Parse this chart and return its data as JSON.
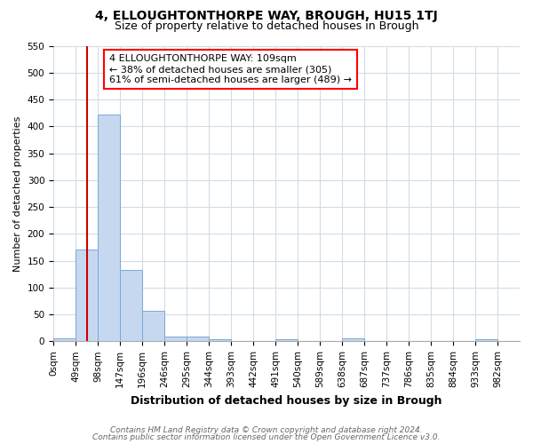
{
  "title": "4, ELLOUGHTONTHORPE WAY, BROUGH, HU15 1TJ",
  "subtitle": "Size of property relative to detached houses in Brough",
  "xlabel": "Distribution of detached houses by size in Brough",
  "ylabel": "Number of detached properties",
  "bin_labels": [
    "0sqm",
    "49sqm",
    "98sqm",
    "147sqm",
    "196sqm",
    "246sqm",
    "295sqm",
    "344sqm",
    "393sqm",
    "442sqm",
    "491sqm",
    "540sqm",
    "589sqm",
    "638sqm",
    "687sqm",
    "737sqm",
    "786sqm",
    "835sqm",
    "884sqm",
    "933sqm",
    "982sqm"
  ],
  "bar_values": [
    5,
    170,
    422,
    132,
    57,
    8,
    8,
    4,
    0,
    0,
    4,
    0,
    0,
    5,
    0,
    0,
    0,
    0,
    0,
    4,
    0
  ],
  "bar_color": "#c5d8f0",
  "bar_edge_color": "#7aa8d4",
  "red_line_x": 1.5,
  "annotation_text": "4 ELLOUGHTONTHORPE WAY: 109sqm\n← 38% of detached houses are smaller (305)\n61% of semi-detached houses are larger (489) →",
  "annotation_box_color": "white",
  "annotation_box_edge_color": "red",
  "red_line_color": "#cc0000",
  "ylim": [
    0,
    550
  ],
  "yticks": [
    0,
    50,
    100,
    150,
    200,
    250,
    300,
    350,
    400,
    450,
    500,
    550
  ],
  "footer_line1": "Contains HM Land Registry data © Crown copyright and database right 2024.",
  "footer_line2": "Contains public sector information licensed under the Open Government Licence v3.0.",
  "background_color": "#ffffff",
  "grid_color": "#d0dce8",
  "title_fontsize": 10,
  "subtitle_fontsize": 9,
  "xlabel_fontsize": 9,
  "ylabel_fontsize": 8,
  "tick_fontsize": 7.5,
  "annotation_fontsize": 8,
  "footer_fontsize": 6.5
}
